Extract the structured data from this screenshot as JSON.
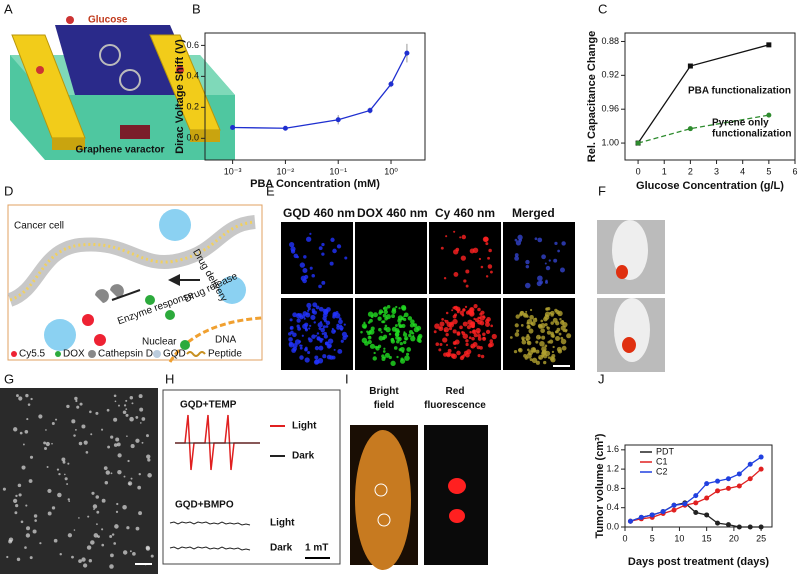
{
  "panel_labels": [
    "A",
    "B",
    "C",
    "D",
    "E",
    "F",
    "G",
    "H",
    "I",
    "J"
  ],
  "panel_a": {
    "analyte": "Glucose",
    "caption": "Graphene varactor"
  },
  "chart_data": [
    {
      "type": "line",
      "x_label": "PBA Concentration (mM)",
      "y_label": "Dirac Voltage Shift (V)",
      "xlog": true,
      "xlim": [
        0.0003,
        4.4
      ],
      "xticks": [
        {
          "value": 0.001,
          "label": "10⁻³"
        },
        {
          "value": 0.01,
          "label": "10⁻²"
        },
        {
          "value": 0.1,
          "label": "10⁻¹"
        },
        {
          "value": 1,
          "label": "10⁰"
        }
      ],
      "ylim": [
        -0.14,
        0.68
      ],
      "yticks": [
        {
          "value": 0,
          "label": "0.0"
        },
        0.2,
        0.4,
        0.6
      ],
      "series": [
        {
          "color": "#1f2fd0",
          "x": [
            0.001,
            0.01,
            0.1,
            0.4,
            1,
            2
          ],
          "values": [
            0.07,
            0.065,
            0.12,
            0.18,
            0.35,
            0.55
          ],
          "errors": [
            0.015,
            0.01,
            0.03,
            0.02,
            0.02,
            0.06
          ]
        }
      ]
    },
    {
      "type": "line",
      "x_label": "Glucose Concentration (g/L)",
      "y_label": "Rel. Capacitance Change",
      "xlim": [
        -0.5,
        6
      ],
      "xticks": [
        0,
        1,
        2,
        3,
        4,
        5,
        6
      ],
      "ylim": [
        1.02,
        0.87
      ],
      "yticks": [
        0.88,
        0.92,
        0.96,
        {
          "value": 1,
          "label": "1.00"
        }
      ],
      "series": [
        {
          "name": "PBA functionalization",
          "color": "#111111",
          "x": [
            0,
            2,
            5
          ],
          "values": [
            1.0,
            0.909,
            0.884
          ]
        },
        {
          "name": "Pyrene only functionalization",
          "color": "#2e8b2e",
          "dashed": true,
          "x": [
            0,
            2,
            5
          ],
          "values": [
            1.0,
            0.983,
            0.967
          ]
        }
      ]
    },
    {
      "type": "line",
      "x_label": "Days post treatment (days)",
      "y_label": "Tumor volume (cm³)",
      "x": [
        1,
        3,
        5,
        7,
        9,
        11,
        13,
        15,
        17,
        19,
        21,
        23,
        25
      ],
      "xlim": [
        0,
        27
      ],
      "xticks": [
        0,
        5,
        10,
        15,
        20,
        25
      ],
      "ylim": [
        0,
        1.7
      ],
      "yticks": [
        {
          "value": 0,
          "label": "0.0"
        },
        0.4,
        0.8,
        1.2,
        1.6
      ],
      "series": [
        {
          "name": "PDT",
          "color": "#222222",
          "values": [
            0.12,
            0.2,
            0.25,
            0.32,
            0.45,
            0.5,
            0.3,
            0.25,
            0.08,
            0.05,
            0.0,
            0.0,
            0.0
          ]
        },
        {
          "name": "C1",
          "color": "#e02020",
          "values": [
            0.12,
            0.17,
            0.2,
            0.28,
            0.35,
            0.45,
            0.5,
            0.6,
            0.75,
            0.8,
            0.85,
            1.0,
            1.2
          ]
        },
        {
          "name": "C2",
          "color": "#2040e0",
          "values": [
            0.12,
            0.2,
            0.25,
            0.32,
            0.45,
            0.48,
            0.65,
            0.9,
            0.95,
            1.0,
            1.1,
            1.3,
            1.45
          ]
        }
      ]
    }
  ],
  "panel_d": {
    "cell": "Cancer cell",
    "delivery": "Drug delivery",
    "release": "Drug release",
    "enzyme": "Enzyme response",
    "nuclear": "Nuclear",
    "dna": "DNA",
    "legend": [
      "Cy5.5",
      "DOX",
      "Cathepsin D",
      "GQD",
      "Peptide"
    ]
  },
  "panel_e": {
    "columns": [
      "GQD 460 nm",
      "DOX 460 nm",
      "Cy 460 nm",
      "Merged"
    ]
  },
  "panel_h": {
    "top": "GQD+TEMP",
    "bottom": "GQD+BMPO",
    "light": "Light",
    "dark": "Dark",
    "scale": "1 mT"
  },
  "panel_i": {
    "left": "Bright field",
    "right": "Red fluorescence"
  }
}
